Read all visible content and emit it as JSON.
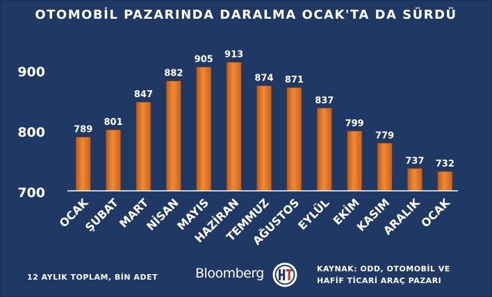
{
  "chart_data": {
    "type": "bar",
    "title": "OTOMOBİL PAZARINDA DARALMA OCAK'TA DA SÜRDÜ",
    "categories": [
      "OCAK",
      "ŞUBAT",
      "MART",
      "NİSAN",
      "MAYIS",
      "HAZİRAN",
      "TEMMUZ",
      "AĞUSTOS",
      "EYLÜL",
      "EKİM",
      "KASIM",
      "ARALIK",
      "OCAK"
    ],
    "values": [
      789,
      801,
      847,
      882,
      905,
      913,
      874,
      871,
      837,
      799,
      779,
      737,
      732
    ],
    "ylim": [
      700,
      925
    ],
    "yticks": [
      700,
      800,
      900
    ],
    "xlabel": "",
    "ylabel": "",
    "grid": false,
    "bar_color": "#e07a2a",
    "background_color": "#1f3864"
  },
  "footer": {
    "note": "12 AYLIK TOPLAM, BİN ADET",
    "brand": "Bloomberg",
    "source_line1": "KAYNAK: ODD, OTOMOBİL VE",
    "source_line2": "HAFİF TİCARİ ARAÇ PAZARI"
  },
  "logo": {
    "icon": "ht-logo-icon",
    "letters": "HT"
  }
}
